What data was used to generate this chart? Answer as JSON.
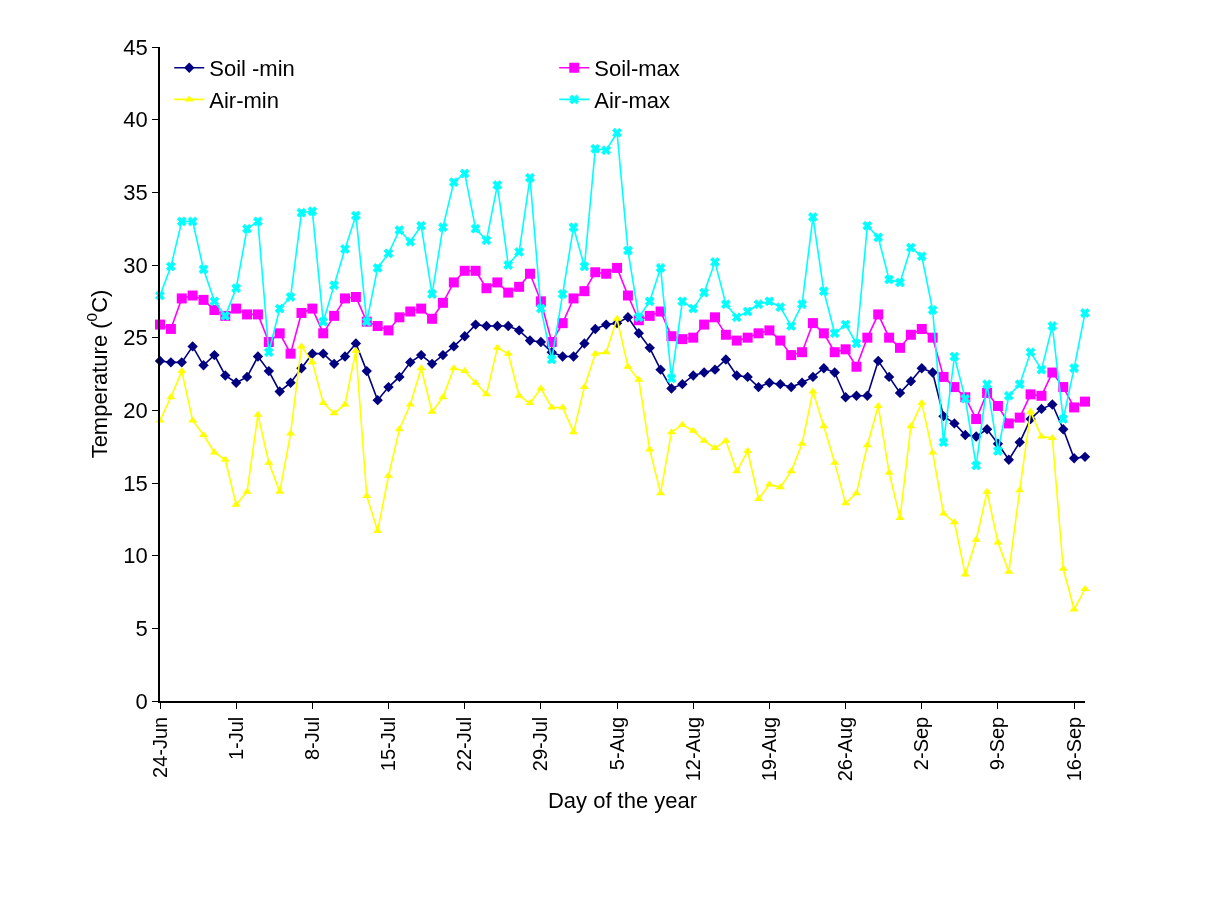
{
  "chart_data": {
    "type": "line",
    "xlabel": "Day of the year",
    "ylabel": "Temperature ($^{0}$C)",
    "x": [
      "--06-24",
      "--06-25",
      "--06-26",
      "--06-27",
      "--06-28",
      "--06-29",
      "--06-30",
      "--07-01",
      "--07-02",
      "--07-03",
      "--07-04",
      "--07-05",
      "--07-06",
      "--07-07",
      "--07-08",
      "--07-09",
      "--07-10",
      "--07-11",
      "--07-12",
      "--07-13",
      "--07-14",
      "--07-15",
      "--07-16",
      "--07-17",
      "--07-18",
      "--07-19",
      "--07-20",
      "--07-21",
      "--07-22",
      "--07-23",
      "--07-24",
      "--07-25",
      "--07-26",
      "--07-27",
      "--07-28",
      "--07-29",
      "--07-30",
      "--07-31",
      "--08-01",
      "--08-02",
      "--08-03",
      "--08-04",
      "--08-05",
      "--08-06",
      "--08-07",
      "--08-08",
      "--08-09",
      "--08-10",
      "--08-11",
      "--08-12",
      "--08-13",
      "--08-14",
      "--08-15",
      "--08-16",
      "--08-17",
      "--08-18",
      "--08-19",
      "--08-20",
      "--08-21",
      "--08-22",
      "--08-23",
      "--08-24",
      "--08-25",
      "--08-26",
      "--08-27",
      "--08-28",
      "--08-29",
      "--08-30",
      "--08-31",
      "--09-01",
      "--09-02",
      "--09-03",
      "--09-04",
      "--09-05",
      "--09-06",
      "--09-07",
      "--09-08",
      "--09-09",
      "--09-10",
      "--09-11",
      "--09-12",
      "--09-13",
      "--09-14",
      "--09-15",
      "--09-16",
      "--09-17"
    ],
    "series": [
      {
        "name": "Soil -min",
        "color": "#000080",
        "marker": "diamond",
        "values": [
          23.4,
          23.3,
          23.3,
          24.4,
          23.1,
          23.8,
          22.4,
          21.9,
          22.3,
          23.7,
          22.7,
          21.3,
          21.9,
          22.9,
          23.9,
          23.9,
          23.2,
          23.7,
          24.6,
          22.7,
          20.7,
          21.6,
          22.3,
          23.3,
          23.8,
          23.2,
          23.8,
          24.4,
          25.1,
          25.9,
          25.8,
          25.8,
          25.8,
          25.5,
          24.8,
          24.7,
          24.0,
          23.7,
          23.7,
          24.6,
          25.6,
          25.9,
          26.0,
          26.4,
          25.3,
          24.3,
          22.8,
          21.5,
          21.8,
          22.4,
          22.6,
          22.8,
          23.5,
          22.4,
          22.3,
          21.6,
          21.9,
          21.8,
          21.6,
          21.9,
          22.3,
          22.9,
          22.6,
          20.9,
          21.0,
          21.0,
          23.4,
          22.3,
          21.2,
          22.0,
          22.9,
          22.6,
          19.6,
          19.1,
          18.3,
          18.2,
          18.7,
          17.7,
          16.6,
          17.8,
          19.4,
          20.1,
          20.4,
          18.7,
          16.7,
          16.8
        ]
      },
      {
        "name": "Soil-max",
        "color": "#ff00ff",
        "marker": "square",
        "values": [
          25.9,
          25.6,
          27.7,
          27.9,
          27.6,
          26.9,
          26.5,
          27.0,
          26.6,
          26.6,
          24.7,
          25.3,
          23.9,
          26.7,
          27.0,
          25.3,
          26.5,
          27.7,
          27.8,
          26.1,
          25.8,
          25.5,
          26.4,
          26.8,
          27.0,
          26.3,
          27.4,
          28.8,
          29.6,
          29.6,
          28.4,
          28.8,
          28.1,
          28.5,
          29.4,
          27.5,
          24.7,
          26.0,
          27.7,
          28.2,
          29.5,
          29.4,
          29.8,
          27.9,
          26.2,
          26.5,
          26.8,
          25.1,
          24.9,
          25.0,
          25.9,
          26.4,
          25.2,
          24.8,
          25.0,
          25.3,
          25.5,
          24.8,
          23.8,
          24.0,
          26.0,
          25.3,
          24.0,
          24.2,
          23.0,
          25.0,
          26.6,
          25.0,
          24.3,
          25.2,
          25.6,
          25.0,
          22.3,
          21.6,
          20.9,
          19.4,
          21.2,
          20.3,
          19.1,
          19.5,
          21.1,
          21.0,
          22.6,
          21.6,
          20.2,
          20.6
        ]
      },
      {
        "name": "Air-min",
        "color": "#ffff00",
        "marker": "triangle",
        "values": [
          19.3,
          20.9,
          22.7,
          19.3,
          18.3,
          17.1,
          16.6,
          13.5,
          14.4,
          19.7,
          16.4,
          14.4,
          18.4,
          24.4,
          23.3,
          20.5,
          19.8,
          20.4,
          24.1,
          14.1,
          11.7,
          15.5,
          18.7,
          20.4,
          22.9,
          19.9,
          20.9,
          22.9,
          22.7,
          21.9,
          21.1,
          24.3,
          23.9,
          21.0,
          20.5,
          21.5,
          20.2,
          20.2,
          18.5,
          21.6,
          23.9,
          24.0,
          26.3,
          23.0,
          22.1,
          17.3,
          14.3,
          18.5,
          19.0,
          18.6,
          17.9,
          17.4,
          17.9,
          15.8,
          17.2,
          13.9,
          14.9,
          14.7,
          15.8,
          17.7,
          21.3,
          18.9,
          16.4,
          13.6,
          14.3,
          17.6,
          20.3,
          15.7,
          12.6,
          18.9,
          20.5,
          17.1,
          12.9,
          12.3,
          8.7,
          11.1,
          14.4,
          10.9,
          8.9,
          14.5,
          19.9,
          18.2,
          18.1,
          9.1,
          6.3,
          7.7
        ]
      },
      {
        "name": "Air-max",
        "color": "#00ffff",
        "marker": "cross",
        "values": [
          27.9,
          29.9,
          33.0,
          33.0,
          29.7,
          27.5,
          26.5,
          28.4,
          32.5,
          33.0,
          24.0,
          27.0,
          27.8,
          33.6,
          33.7,
          26.1,
          28.6,
          31.1,
          33.4,
          26.1,
          29.8,
          30.8,
          32.4,
          31.6,
          32.7,
          28.0,
          32.6,
          35.7,
          36.3,
          32.5,
          31.7,
          35.5,
          30.0,
          30.9,
          36.0,
          27.0,
          23.5,
          28.0,
          32.6,
          29.9,
          38.0,
          37.9,
          39.1,
          31.0,
          26.4,
          27.5,
          29.8,
          22.2,
          27.5,
          27.0,
          28.1,
          30.2,
          27.3,
          26.4,
          26.8,
          27.3,
          27.5,
          27.1,
          25.8,
          27.3,
          33.3,
          28.2,
          25.3,
          25.9,
          24.6,
          32.7,
          31.9,
          29.0,
          28.8,
          31.2,
          30.6,
          26.9,
          17.8,
          23.7,
          20.8,
          16.2,
          21.8,
          17.2,
          21.0,
          21.8,
          24.0,
          22.8,
          25.8,
          19.4,
          22.9,
          26.7
        ]
      }
    ],
    "xlim": [
      "--06-24",
      "--09-17"
    ],
    "xticks": [
      {
        "value": "--06-24",
        "label": "24-Jun"
      },
      {
        "value": "--07-01",
        "label": "1-Jul"
      },
      {
        "value": "--07-08",
        "label": "8-Jul"
      },
      {
        "value": "--07-15",
        "label": "15-Jul"
      },
      {
        "value": "--07-22",
        "label": "22-Jul"
      },
      {
        "value": "--07-29",
        "label": "29-Jul"
      },
      {
        "value": "--08-05",
        "label": "5-Aug"
      },
      {
        "value": "--08-12",
        "label": "12-Aug"
      },
      {
        "value": "--08-19",
        "label": "19-Aug"
      },
      {
        "value": "--08-26",
        "label": "26-Aug"
      },
      {
        "value": "--09-02",
        "label": "2-Sep"
      },
      {
        "value": "--09-09",
        "label": "9-Sep"
      },
      {
        "value": "--09-16",
        "label": "16-Sep"
      }
    ],
    "ylim": [
      0,
      45
    ],
    "yticks": [
      0,
      5,
      10,
      15,
      20,
      25,
      30,
      35,
      40,
      45
    ],
    "grid": false,
    "legend": "top left",
    "line_style": "solid"
  }
}
